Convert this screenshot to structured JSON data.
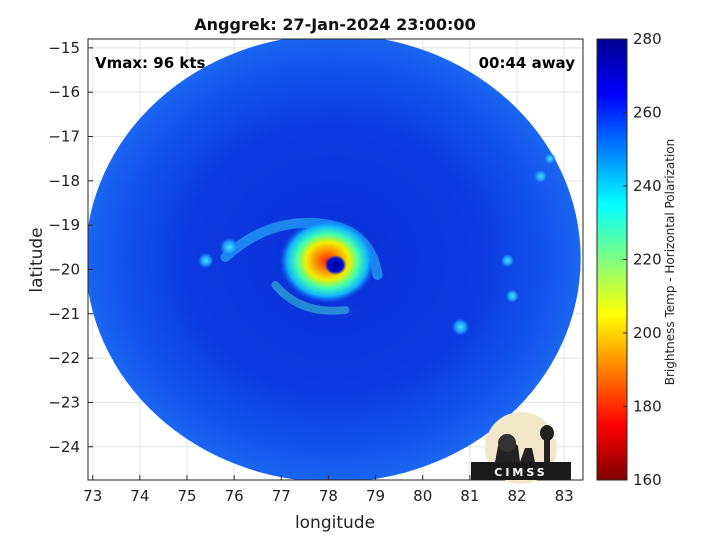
{
  "chart_data": {
    "type": "heatmap",
    "title": "Anggrek: 27-Jan-2024 23:00:00",
    "xlabel": "longitude",
    "ylabel": "latitude",
    "xlim": [
      72.9,
      83.4
    ],
    "ylim": [
      -24.75,
      -14.8
    ],
    "xticks": [
      73,
      74,
      75,
      76,
      77,
      78,
      79,
      80,
      81,
      82,
      83
    ],
    "yticks": [
      -15,
      -16,
      -17,
      -18,
      -19,
      -20,
      -21,
      -22,
      -23,
      -24
    ],
    "grid": true,
    "annotations": {
      "top_left": "Vmax: 96 kts",
      "top_right": "00:44 away"
    },
    "swath": {
      "shape": "circle",
      "center": [
        78.1,
        -19.75
      ],
      "radius_deg_lon": 5.25,
      "radius_deg_lat": 5.05
    },
    "storm_features": {
      "eye_center": [
        78.15,
        -19.9
      ],
      "eyewall_warm_ring": [
        77.95,
        -19.6
      ],
      "background_temp_k": 262,
      "eyewall_min_temp_k": 185
    },
    "colorbar": {
      "label": "Brightness Temp - Horizontal Polarization",
      "range": [
        160,
        280
      ],
      "ticks": [
        160,
        180,
        200,
        220,
        240,
        260,
        280
      ],
      "colormap": "jet",
      "colors": [
        "#7f0000",
        "#ff0000",
        "#ff8000",
        "#ffff00",
        "#80ff80",
        "#00ffff",
        "#0080ff",
        "#0000ff",
        "#00008f"
      ]
    },
    "logo": {
      "text": "CIMSS"
    }
  }
}
